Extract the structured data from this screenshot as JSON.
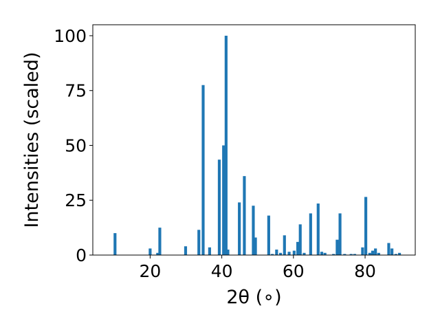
{
  "chart_data": {
    "type": "bar",
    "title": "",
    "xlabel": "2θ (∘)",
    "ylabel": "Intensities (scaled)",
    "xlim": [
      4.0,
      94.0
    ],
    "ylim": [
      0,
      105
    ],
    "xticks": [
      20,
      40,
      60,
      80
    ],
    "yticks": [
      0,
      25,
      50,
      75,
      100
    ],
    "bar_width": 0.8,
    "grid": false,
    "legend": "none",
    "bar_color": "#1f77b4",
    "x": [
      10.2,
      20.0,
      22.1,
      22.7,
      29.9,
      33.6,
      34.8,
      36.6,
      39.3,
      40.5,
      41.2,
      41.7,
      44.9,
      46.3,
      48.8,
      49.4,
      53.1,
      54.1,
      55.3,
      56.4,
      57.5,
      58.8,
      60.2,
      61.2,
      61.9,
      63.0,
      64.8,
      66.9,
      67.9,
      68.8,
      71.2,
      72.2,
      73.0,
      74.3,
      76.1,
      77.1,
      79.3,
      80.2,
      81.3,
      82.1,
      82.9,
      83.8,
      86.6,
      87.5,
      88.6,
      89.6
    ],
    "values": [
      10,
      3,
      1,
      12.5,
      4,
      11.5,
      77.5,
      3.5,
      43.5,
      50,
      100,
      2.5,
      24,
      36,
      22.5,
      8,
      18,
      0.5,
      2.5,
      1,
      9,
      1.5,
      2,
      6,
      14,
      1,
      19,
      23.5,
      1.5,
      1,
      0.5,
      7,
      19,
      0.5,
      0.5,
      0.5,
      3.5,
      26.5,
      1,
      2,
      3,
      1,
      5.5,
      3,
      0.5,
      1
    ]
  }
}
